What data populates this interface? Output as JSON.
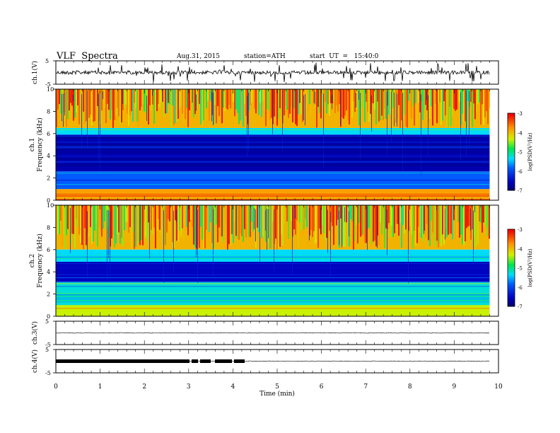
{
  "header": {
    "title": "VLF  Spectra",
    "date": "Aug.31, 2015",
    "station": "station=ATH",
    "start": "start  UT  =   15:40:0"
  },
  "chart_data": [
    {
      "type": "line",
      "panel": "ch1-waveform",
      "ylabel": "ch.1(V)",
      "yticks": [
        "5",
        "-5"
      ],
      "ylim": [
        -5,
        5
      ],
      "xlim": [
        0,
        10
      ],
      "baseline": 0,
      "trace_end_min": 9.8
    },
    {
      "type": "heatmap",
      "panel": "ch1-spectrogram",
      "ylabel": "ch.1\nFrequency (kHz)",
      "ylim": [
        0,
        10
      ],
      "yticks": [
        "0",
        "2",
        "4",
        "6",
        "8",
        "10"
      ],
      "xlim": [
        0,
        10
      ],
      "data_end_min": 9.8,
      "colorbar": {
        "label": "log(PSD(V²/Hz)",
        "ticks": [
          "-3",
          "-4",
          "-5",
          "-6",
          "-7"
        ],
        "range": [
          -7,
          -3
        ]
      },
      "bands_khz": [
        {
          "range": [
            6.5,
            10
          ],
          "level": -3.9,
          "desc": "broadband noise (green/yellow/red)"
        },
        {
          "range": [
            5.9,
            6.5
          ],
          "level": -5.3,
          "desc": "green/cyan"
        },
        {
          "range": [
            2.6,
            5.9
          ],
          "level": -6.6,
          "desc": "quiet band (dark blue)"
        },
        {
          "range": [
            1.0,
            2.6
          ],
          "level": -5.8,
          "desc": "cyan/blue with stripes"
        },
        {
          "range": [
            0.0,
            1.0
          ],
          "level": -3.8,
          "desc": "red/yellow low-frequency lines"
        }
      ]
    },
    {
      "type": "heatmap",
      "panel": "ch2-spectrogram",
      "ylabel": "ch.2\nFrequency (kHz)",
      "ylim": [
        0,
        10
      ],
      "yticks": [
        "0",
        "2",
        "4",
        "6",
        "8",
        "10"
      ],
      "xlim": [
        0,
        10
      ],
      "data_end_min": 9.8,
      "colorbar": {
        "label": "log(PSD(V²/Hz)",
        "ticks": [
          "-3",
          "-4",
          "-5",
          "-6",
          "-7"
        ],
        "range": [
          -7,
          -3
        ]
      },
      "bands_khz": [
        {
          "range": [
            6.0,
            10
          ],
          "level": -3.9,
          "desc": "broadband noise (green/yellow/red)"
        },
        {
          "range": [
            4.9,
            6.0
          ],
          "level": -5.3,
          "desc": "green/cyan"
        },
        {
          "range": [
            3.1,
            4.9
          ],
          "level": -6.5,
          "desc": "blue"
        },
        {
          "range": [
            1.0,
            3.1
          ],
          "level": -5.2,
          "desc": "green/cyan lines"
        },
        {
          "range": [
            0.0,
            1.0
          ],
          "level": -4.3,
          "desc": "yellow/green low-frequency"
        }
      ]
    },
    {
      "type": "line",
      "panel": "ch3-waveform",
      "ylabel": "ch.3(V)",
      "yticks": [
        "5",
        "-5"
      ],
      "ylim": [
        -5,
        5
      ],
      "xlim": [
        0,
        10
      ],
      "baseline": 0,
      "trace_end_min": 9.8
    },
    {
      "type": "line",
      "panel": "ch4-waveform",
      "ylabel": "ch.4(V)",
      "yticks": [
        "5",
        "-5"
      ],
      "ylim": [
        -5,
        5
      ],
      "xlim": [
        0,
        10
      ],
      "baseline": 0,
      "trace_end_min": 9.8,
      "thick_segment_min": [
        0,
        4.3
      ]
    }
  ],
  "xaxis": {
    "label": "Time  (min)",
    "ticks": [
      "0",
      "1",
      "2",
      "3",
      "4",
      "5",
      "6",
      "7",
      "8",
      "9",
      "10"
    ],
    "range": [
      0,
      10
    ]
  }
}
